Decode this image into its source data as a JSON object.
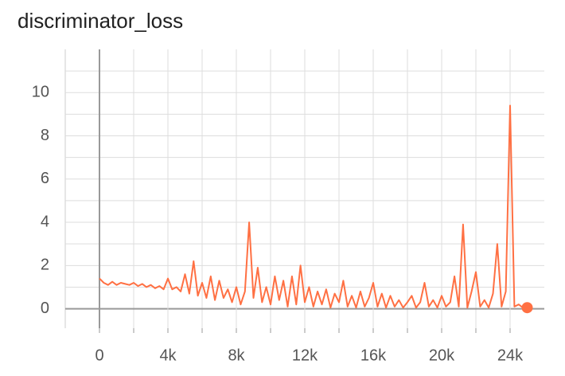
{
  "chart_data": {
    "type": "line",
    "title": "discriminator_loss",
    "x": [
      0,
      250,
      500,
      750,
      1000,
      1250,
      1500,
      1750,
      2000,
      2250,
      2500,
      2750,
      3000,
      3250,
      3500,
      3750,
      4000,
      4250,
      4500,
      4750,
      5000,
      5250,
      5500,
      5750,
      6000,
      6250,
      6500,
      6750,
      7000,
      7250,
      7500,
      7750,
      8000,
      8250,
      8500,
      8750,
      9000,
      9250,
      9500,
      9750,
      10000,
      10250,
      10500,
      10750,
      11000,
      11250,
      11500,
      11750,
      12000,
      12250,
      12500,
      12750,
      13000,
      13250,
      13500,
      13750,
      14000,
      14250,
      14500,
      14750,
      15000,
      15250,
      15500,
      15750,
      16000,
      16250,
      16500,
      16750,
      17000,
      17250,
      17500,
      17750,
      18000,
      18250,
      18500,
      18750,
      19000,
      19250,
      19500,
      19750,
      20000,
      20250,
      20500,
      20750,
      21000,
      21250,
      21500,
      21750,
      22000,
      22250,
      22500,
      22750,
      23000,
      23250,
      23500,
      23750,
      24000,
      24250,
      24500,
      24750,
      25000
    ],
    "series": [
      {
        "color": "#ff7043",
        "values": [
          1.4,
          1.2,
          1.1,
          1.25,
          1.1,
          1.2,
          1.15,
          1.1,
          1.2,
          1.05,
          1.15,
          1.0,
          1.1,
          0.95,
          1.05,
          0.9,
          1.4,
          0.9,
          1.0,
          0.8,
          1.6,
          0.7,
          2.2,
          0.6,
          1.2,
          0.5,
          1.5,
          0.4,
          1.3,
          0.5,
          0.9,
          0.3,
          1.0,
          0.2,
          0.8,
          4.0,
          0.5,
          1.9,
          0.3,
          1.0,
          0.2,
          1.5,
          0.4,
          1.3,
          0.1,
          1.5,
          0.2,
          2.0,
          0.3,
          1.0,
          0.1,
          0.8,
          0.2,
          0.9,
          0.05,
          0.7,
          0.3,
          1.3,
          0.1,
          0.6,
          0.05,
          0.8,
          0.1,
          0.5,
          1.2,
          0.1,
          0.7,
          0.05,
          0.6,
          0.1,
          0.4,
          0.05,
          0.3,
          0.6,
          0.05,
          0.3,
          1.2,
          0.1,
          0.4,
          0.05,
          0.6,
          0.1,
          0.3,
          1.5,
          0.1,
          3.9,
          0.05,
          0.8,
          1.7,
          0.1,
          0.4,
          0.05,
          0.7,
          3.0,
          0.1,
          0.8,
          9.4,
          0.1,
          0.2,
          0.05,
          0.05
        ]
      }
    ],
    "xlim": [
      -2000,
      26000
    ],
    "xticks": [
      0,
      {
        "value": 4000,
        "label": "4k"
      },
      {
        "value": 8000,
        "label": "8k"
      },
      {
        "value": 12000,
        "label": "12k"
      },
      {
        "value": 16000,
        "label": "16k"
      },
      {
        "value": 20000,
        "label": "20k"
      },
      {
        "value": 24000,
        "label": "24k"
      }
    ],
    "x_minor_grid": [
      2000,
      6000,
      10000,
      14000,
      18000,
      22000
    ],
    "ylim": [
      -0.9,
      12
    ],
    "yticks": [
      0,
      2,
      4,
      6,
      8,
      10
    ],
    "y_minor_grid": [
      1,
      3,
      5,
      7,
      9,
      11
    ],
    "grid": true
  }
}
